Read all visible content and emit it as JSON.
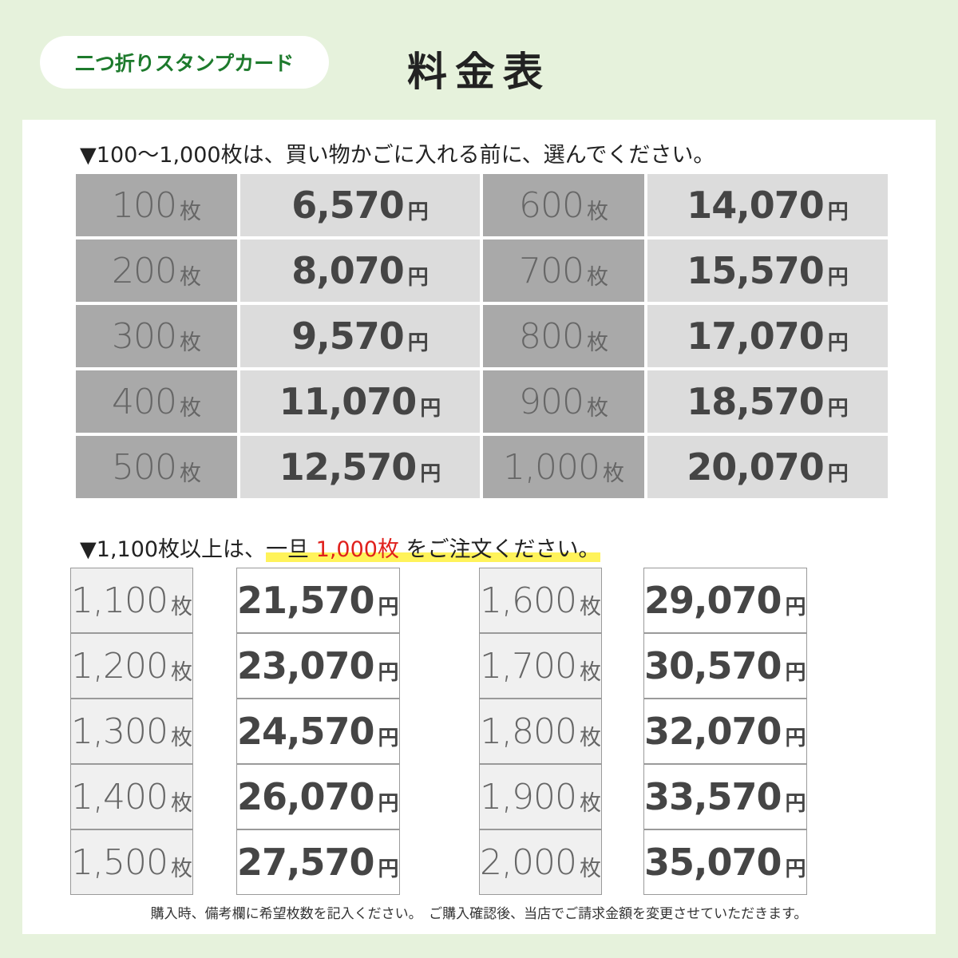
{
  "badge": "二つ折りスタンプカード",
  "title": "料金表",
  "qty_unit": "枚",
  "price_unit": "円",
  "section1": {
    "note": "▼100〜1,000枚は、買い物かごに入れる前に、選んでください。",
    "rows": [
      [
        "100",
        "6,570",
        "600",
        "14,070"
      ],
      [
        "200",
        "8,070",
        "700",
        "15,570"
      ],
      [
        "300",
        "9,570",
        "800",
        "17,070"
      ],
      [
        "400",
        "11,070",
        "900",
        "18,570"
      ],
      [
        "500",
        "12,570",
        "1,000",
        "20,070"
      ]
    ]
  },
  "section2": {
    "note_lead": "▼1,100枚以上は、",
    "note_highlight_a": "一旦 ",
    "note_red": "1,000枚",
    "note_highlight_b": " をご注文ください。",
    "rows": [
      [
        "1,100",
        "21,570",
        "1,600",
        "29,070"
      ],
      [
        "1,200",
        "23,070",
        "1,700",
        "30,570"
      ],
      [
        "1,300",
        "24,570",
        "1,800",
        "32,070"
      ],
      [
        "1,400",
        "26,070",
        "1,900",
        "33,570"
      ],
      [
        "1,500",
        "27,570",
        "2,000",
        "35,070"
      ]
    ]
  },
  "footer": "購入時、備考欄に希望枚数を記入ください。　ご購入確認後、当店でご請求金額を変更させていただきます。"
}
